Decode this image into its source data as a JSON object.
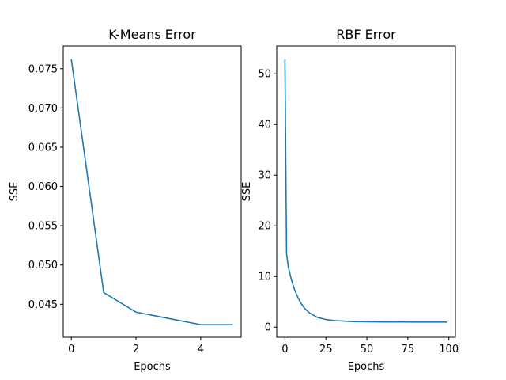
{
  "chart_data": [
    {
      "type": "line",
      "title": "K-Means Error",
      "xlabel": "Epochs",
      "ylabel": "SSE",
      "xlim": [
        -0.25,
        5.25
      ],
      "ylim": [
        0.0408,
        0.0779
      ],
      "xticks": [
        0,
        2,
        4
      ],
      "xtick_labels": [
        "0",
        "2",
        "4"
      ],
      "yticks": [
        0.045,
        0.05,
        0.055,
        0.06,
        0.065,
        0.07,
        0.075
      ],
      "ytick_labels": [
        "0.045",
        "0.050",
        "0.055",
        "0.060",
        "0.065",
        "0.070",
        "0.075"
      ],
      "grid": false,
      "color": "#1f77b4",
      "series": [
        {
          "x": [
            0,
            1,
            2,
            3,
            4,
            5
          ],
          "values": [
            0.0762,
            0.0465,
            0.044,
            0.0432,
            0.0424,
            0.0424
          ]
        }
      ]
    },
    {
      "type": "line",
      "title": "RBF Error",
      "xlabel": "Epochs",
      "ylabel": "SSE",
      "xlim": [
        -5,
        104
      ],
      "ylim": [
        -2,
        55.5
      ],
      "xticks": [
        0,
        25,
        50,
        75,
        100
      ],
      "xtick_labels": [
        "0",
        "25",
        "50",
        "75",
        "100"
      ],
      "yticks": [
        0,
        10,
        20,
        30,
        40,
        50
      ],
      "ytick_labels": [
        "0",
        "10",
        "20",
        "30",
        "40",
        "50"
      ],
      "grid": false,
      "color": "#1f77b4",
      "series": [
        {
          "x": [
            0,
            1,
            2,
            4,
            6,
            8,
            10,
            12,
            15,
            20,
            25,
            30,
            40,
            50,
            60,
            70,
            80,
            90,
            99
          ],
          "values": [
            52.8,
            14.5,
            12.0,
            9.3,
            7.3,
            5.8,
            4.6,
            3.7,
            2.8,
            1.9,
            1.5,
            1.3,
            1.12,
            1.05,
            1.02,
            1.01,
            1.0,
            1.0,
            1.0
          ]
        }
      ]
    }
  ]
}
